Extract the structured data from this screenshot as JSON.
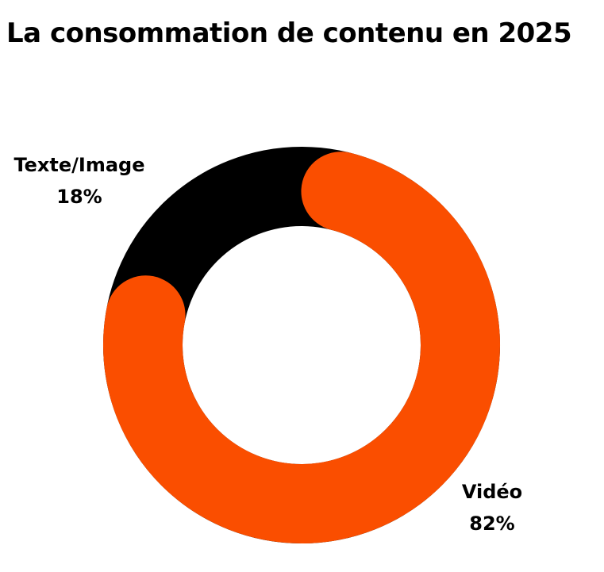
{
  "chart_data": {
    "type": "pie",
    "variant": "donut",
    "title": "La consommation de contenu en 2025",
    "categories": [
      "Vidéo",
      "Texte/Image"
    ],
    "values": [
      82,
      18
    ],
    "value_labels": [
      "82%",
      "18%"
    ],
    "colors": [
      "#FA4E00",
      "#000000"
    ],
    "start": "top",
    "direction": "clockwise",
    "legend": "none"
  }
}
